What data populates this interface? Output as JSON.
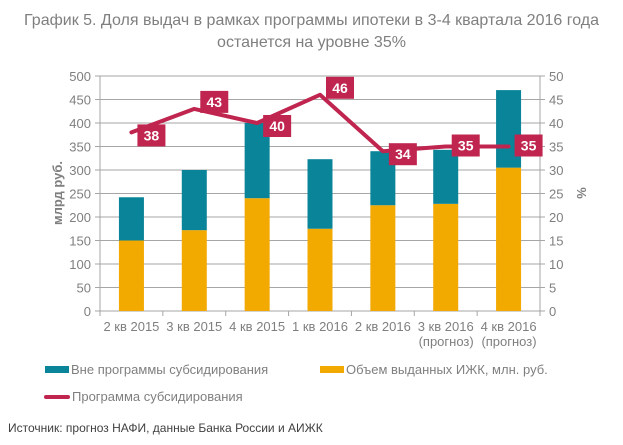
{
  "title_line1": "График 5. Доля выдач в рамках программы ипотеки в 3-4 квартала 2016 года",
  "title_line2": "останется на уровне 35%",
  "source": "Источник: прогноз НАФИ, данные Банка России и АИЖК",
  "colors": {
    "outside": "#0a8499",
    "volume": "#f2a900",
    "program": "#c0254f",
    "grid": "#a6a6a6",
    "text": "#7f7f7f"
  },
  "chart_data": {
    "type": "bar",
    "stacked": true,
    "title": "График 5. Доля выдач в рамках программы ипотеки в 3-4 квартала 2016 года останется на уровне 35%",
    "categories": [
      [
        "2 кв 2015"
      ],
      [
        "3 кв 2015"
      ],
      [
        "4 кв 2015"
      ],
      [
        "1 кв 2016"
      ],
      [
        "2 кв 2016"
      ],
      [
        "3 кв 2016",
        "(прогноз)"
      ],
      [
        "4 кв 2016",
        "(прогноз)"
      ]
    ],
    "ylabel": "млрд руб.",
    "y2label": "%",
    "ylim": [
      0,
      500
    ],
    "y2lim": [
      0,
      50
    ],
    "yticks": [
      "0",
      "50",
      "100",
      "150",
      "200",
      "250",
      "300",
      "350",
      "400",
      "450",
      "500"
    ],
    "y2ticks": [
      "0",
      "5",
      "10",
      "15",
      "20",
      "25",
      "30",
      "35",
      "40",
      "45",
      "50"
    ],
    "grid": true,
    "legend_position": "bottom",
    "series": [
      {
        "name": "Объем выданных ИЖК, млн. руб.",
        "kind": "bar",
        "axis": "left",
        "values": [
          150,
          172,
          240,
          175,
          225,
          228,
          305
        ]
      },
      {
        "name": "Вне программы субсидирования",
        "kind": "bar",
        "axis": "left",
        "values": [
          92,
          128,
          160,
          148,
          115,
          115,
          165
        ]
      },
      {
        "name": "Программа субсидирования",
        "kind": "line",
        "axis": "right",
        "values": [
          38,
          43,
          40,
          46,
          34,
          35,
          35
        ],
        "labels": [
          "38",
          "43",
          "40",
          "46",
          "34",
          "35",
          "35"
        ]
      }
    ],
    "legend": [
      {
        "name": "Вне программы субсидирования",
        "type": "box",
        "color_key": "outside"
      },
      {
        "name": "Объем выданных ИЖК, млн. руб.",
        "type": "box",
        "color_key": "volume"
      },
      {
        "name": "Программа субсидирования",
        "type": "line",
        "color_key": "program"
      }
    ]
  }
}
